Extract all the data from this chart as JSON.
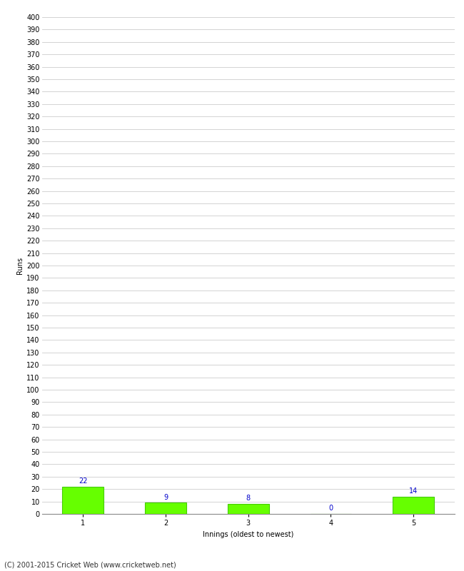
{
  "title": "",
  "xlabel": "Innings (oldest to newest)",
  "ylabel": "Runs",
  "categories": [
    1,
    2,
    3,
    4,
    5
  ],
  "values": [
    22,
    9,
    8,
    0,
    14
  ],
  "bar_color": "#66ff00",
  "bar_edge_color": "#44cc00",
  "label_color": "#0000cc",
  "ylim": [
    0,
    400
  ],
  "ytick_step": 10,
  "background_color": "#ffffff",
  "grid_color": "#cccccc",
  "footer": "(C) 2001-2015 Cricket Web (www.cricketweb.net)",
  "label_fontsize": 7,
  "axis_fontsize": 7,
  "footer_fontsize": 7,
  "ylabel_fontsize": 7
}
